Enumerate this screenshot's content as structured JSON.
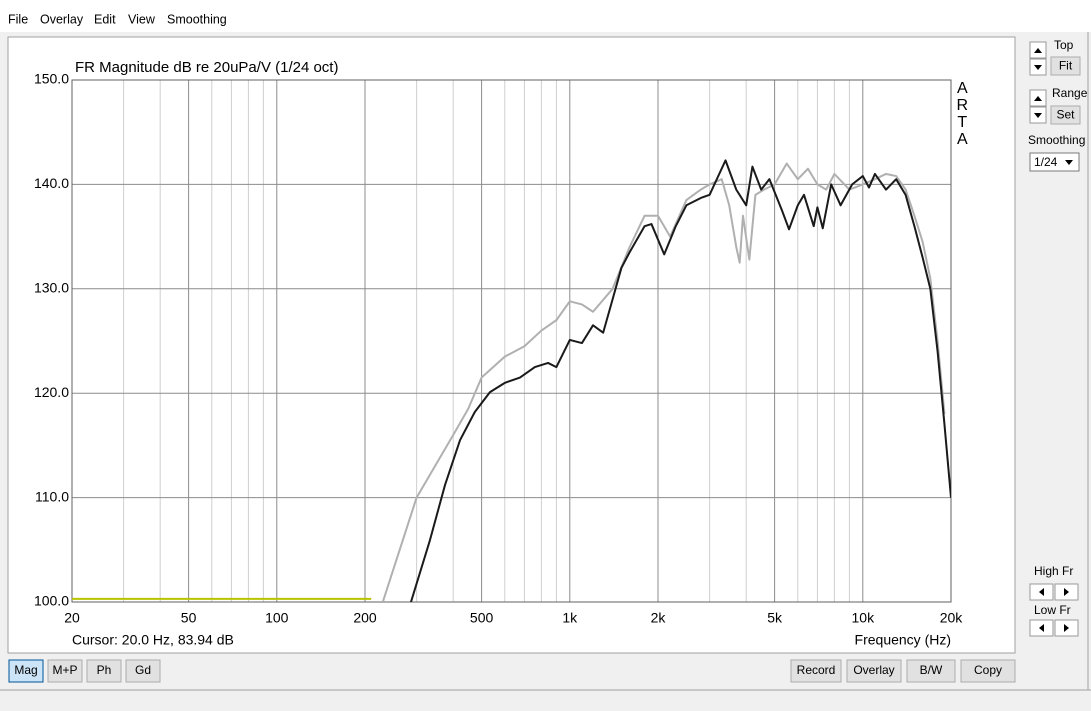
{
  "menu": [
    "File",
    "Overlay",
    "Edit",
    "View",
    "Smoothing"
  ],
  "chart_data": {
    "type": "line",
    "title": "FR Magnitude dB re 20uPa/V (1/24 oct)",
    "side_label": "ARTA",
    "cursor_readout": "Cursor: 20.0 Hz, 83.94 dB",
    "x_label": "Frequency (Hz)",
    "xscale": "log",
    "xlim": [
      20,
      20000
    ],
    "ylim": [
      100,
      150
    ],
    "xticks": [
      20,
      50,
      100,
      200,
      500,
      {
        "value": 1000,
        "label": "1k"
      },
      {
        "value": 2000,
        "label": "2k"
      },
      {
        "value": 5000,
        "label": "5k"
      },
      {
        "value": 10000,
        "label": "10k"
      },
      {
        "value": 20000,
        "label": "20k"
      }
    ],
    "xticks_minor": [
      30,
      40,
      60,
      70,
      80,
      90,
      300,
      400,
      600,
      700,
      800,
      900,
      3000,
      4000,
      6000,
      7000,
      8000,
      9000
    ],
    "yticks": [
      {
        "value": 100,
        "label": "100.0"
      },
      {
        "value": 110,
        "label": "110.0"
      },
      {
        "value": 120,
        "label": "120.0"
      },
      {
        "value": 130,
        "label": "130.0"
      },
      {
        "value": 140,
        "label": "140.0"
      },
      {
        "value": 150,
        "label": "150.0"
      }
    ],
    "grid": true,
    "series": [
      {
        "color": "#b0b0b0",
        "x": [
          230,
          300,
          400,
          450,
          500,
          600,
          700,
          800,
          900,
          1000,
          1100,
          1200,
          1400,
          1600,
          1800,
          2000,
          2200,
          2500,
          2800,
          3000,
          3300,
          3500,
          3700,
          3800,
          3900,
          4100,
          4300,
          4600,
          5000,
          5500,
          6000,
          6500,
          7000,
          7500,
          8000,
          9000,
          10000,
          11000,
          12000,
          13000,
          14000,
          15000,
          16000,
          17000,
          18000,
          19000
        ],
        "values": [
          100,
          110,
          116,
          118.5,
          121.5,
          123.5,
          124.5,
          126,
          127,
          128.8,
          128.5,
          127.8,
          130,
          134,
          137,
          137,
          135,
          138.5,
          139.5,
          140,
          140.5,
          138,
          134,
          132.5,
          137,
          132.8,
          139,
          139.5,
          140,
          142,
          140.5,
          141.5,
          140,
          139.5,
          141,
          139.5,
          140,
          140.5,
          141,
          140.8,
          139.5,
          137,
          134.5,
          131,
          125,
          118
        ]
      },
      {
        "color": "#1a1a1a",
        "x": [
          287,
          333,
          375,
          422,
          474,
          534,
          601,
          676,
          760,
          843,
          900,
          1000,
          1100,
          1200,
          1300,
          1400,
          1500,
          1600,
          1800,
          1900,
          2100,
          2300,
          2500,
          2800,
          3000,
          3400,
          3700,
          4000,
          4200,
          4500,
          4800,
          5300,
          5600,
          6000,
          6300,
          6800,
          7000,
          7300,
          7800,
          8400,
          9200,
          10000,
          10500,
          11000,
          12000,
          13000,
          14000,
          15000,
          16000,
          17000,
          18000,
          19000,
          20000
        ],
        "values": [
          100,
          105.9,
          111.2,
          115.5,
          118.2,
          120.1,
          121,
          121.5,
          122.5,
          122.9,
          122.5,
          125.1,
          124.8,
          126.5,
          125.8,
          129,
          132,
          133.5,
          136,
          136.2,
          133.3,
          136,
          138,
          138.7,
          139,
          142.3,
          139.5,
          138,
          141.7,
          139.5,
          140.5,
          137.5,
          135.7,
          138,
          139,
          136,
          137.8,
          135.8,
          140,
          138,
          140,
          140.8,
          139.7,
          141,
          139.5,
          140.5,
          139,
          136,
          133,
          130,
          124,
          117,
          110
        ]
      },
      {
        "color": "#b8c400",
        "x": [
          20,
          210
        ],
        "values": [
          100.3,
          100.3
        ]
      }
    ]
  },
  "side_panel": {
    "top_label": "Top",
    "fit_button": "Fit",
    "range_label": "Range",
    "set_button": "Set",
    "smoothing_label": "Smoothing",
    "smoothing_value": "1/24",
    "high_fr_label": "High Fr",
    "low_fr_label": "Low Fr"
  },
  "bottom_buttons": {
    "left": [
      "Mag",
      "M+P",
      "Ph",
      "Gd"
    ],
    "right": [
      "Record",
      "Overlay",
      "B/W",
      "Copy"
    ]
  }
}
